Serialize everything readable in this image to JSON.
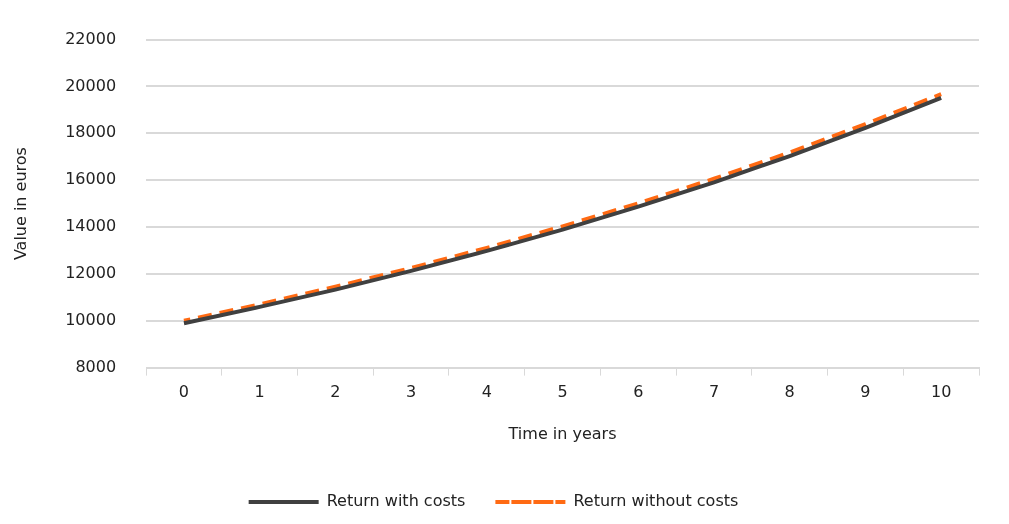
{
  "chart_data": {
    "type": "line",
    "xlabel": "Time in years",
    "ylabel": "Value in euros",
    "categories": [
      "0",
      "1",
      "2",
      "3",
      "4",
      "5",
      "6",
      "7",
      "8",
      "9",
      "10"
    ],
    "series": [
      {
        "name": "Return with costs",
        "color": "#404040",
        "line_style": "solid",
        "values": [
          9890,
          10590,
          11330,
          12130,
          12980,
          13890,
          14870,
          15910,
          17030,
          18230,
          19510
        ]
      },
      {
        "name": "Return without costs",
        "color": "#ff6a13",
        "line_style": "dashed",
        "values": [
          10000,
          10700,
          11450,
          12250,
          13110,
          14030,
          15010,
          16060,
          17180,
          18390,
          19670
        ]
      }
    ],
    "ylim": [
      8000,
      22000
    ],
    "yticks": [
      8000,
      10000,
      12000,
      14000,
      16000,
      18000,
      20000,
      22000
    ],
    "grid": "y",
    "legend": "bottom",
    "marker": "none"
  }
}
